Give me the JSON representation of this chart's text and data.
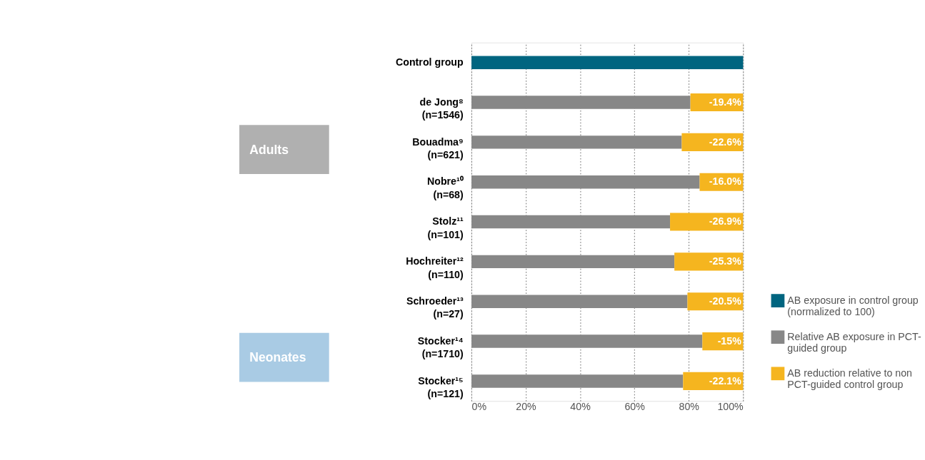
{
  "chart_data": {
    "type": "bar",
    "orientation": "horizontal",
    "categories": [
      "Control group",
      "de Jong⁸\n(n=1546)",
      "Bouadma⁹\n(n=621)",
      "Nobre¹⁰\n(n=68)",
      "Stolz¹¹\n(n=101)",
      "Hochreiter¹²\n(n=110)",
      "Schroeder¹³\n(n=27)",
      "Stocker¹⁴\n(n=1710)",
      "Stocker¹⁵\n(n=121)"
    ],
    "series": [
      {
        "name": "AB exposure in control group (normalized to 100)",
        "color": "#006580",
        "values": [
          100,
          null,
          null,
          null,
          null,
          null,
          null,
          null,
          null
        ]
      },
      {
        "name": "Relative AB exposure in PCT-guided group",
        "color": "#878787",
        "values": [
          null,
          80.6,
          77.4,
          84.0,
          73.1,
          74.7,
          79.5,
          85,
          77.9
        ]
      },
      {
        "name": "AB reduction relative to non PCT-guided control group",
        "color": "#f5b51f",
        "values": [
          null,
          -19.4,
          -22.6,
          -16.0,
          -26.9,
          -25.3,
          -20.5,
          -15,
          -22.1
        ],
        "base": [
          null,
          100,
          100,
          100,
          100,
          100,
          100,
          100,
          100
        ],
        "value_labels": [
          null,
          "-19.4%",
          "-22.6%",
          "-16.0%",
          "-26.9%",
          "-25.3%",
          "-20.5%",
          "-15%",
          "-22.1%"
        ]
      }
    ],
    "xlim": [
      0,
      100
    ],
    "xticks": [
      {
        "value": 0,
        "label": "0%"
      },
      {
        "value": 20,
        "label": "20%"
      },
      {
        "value": 40,
        "label": "40%"
      },
      {
        "value": 60,
        "label": "60%"
      },
      {
        "value": 80,
        "label": "80%"
      },
      {
        "value": 100,
        "label": "100%"
      }
    ],
    "grid": "x",
    "legend": "bottom right",
    "annotations": [
      "Adults",
      "Neonates"
    ]
  }
}
